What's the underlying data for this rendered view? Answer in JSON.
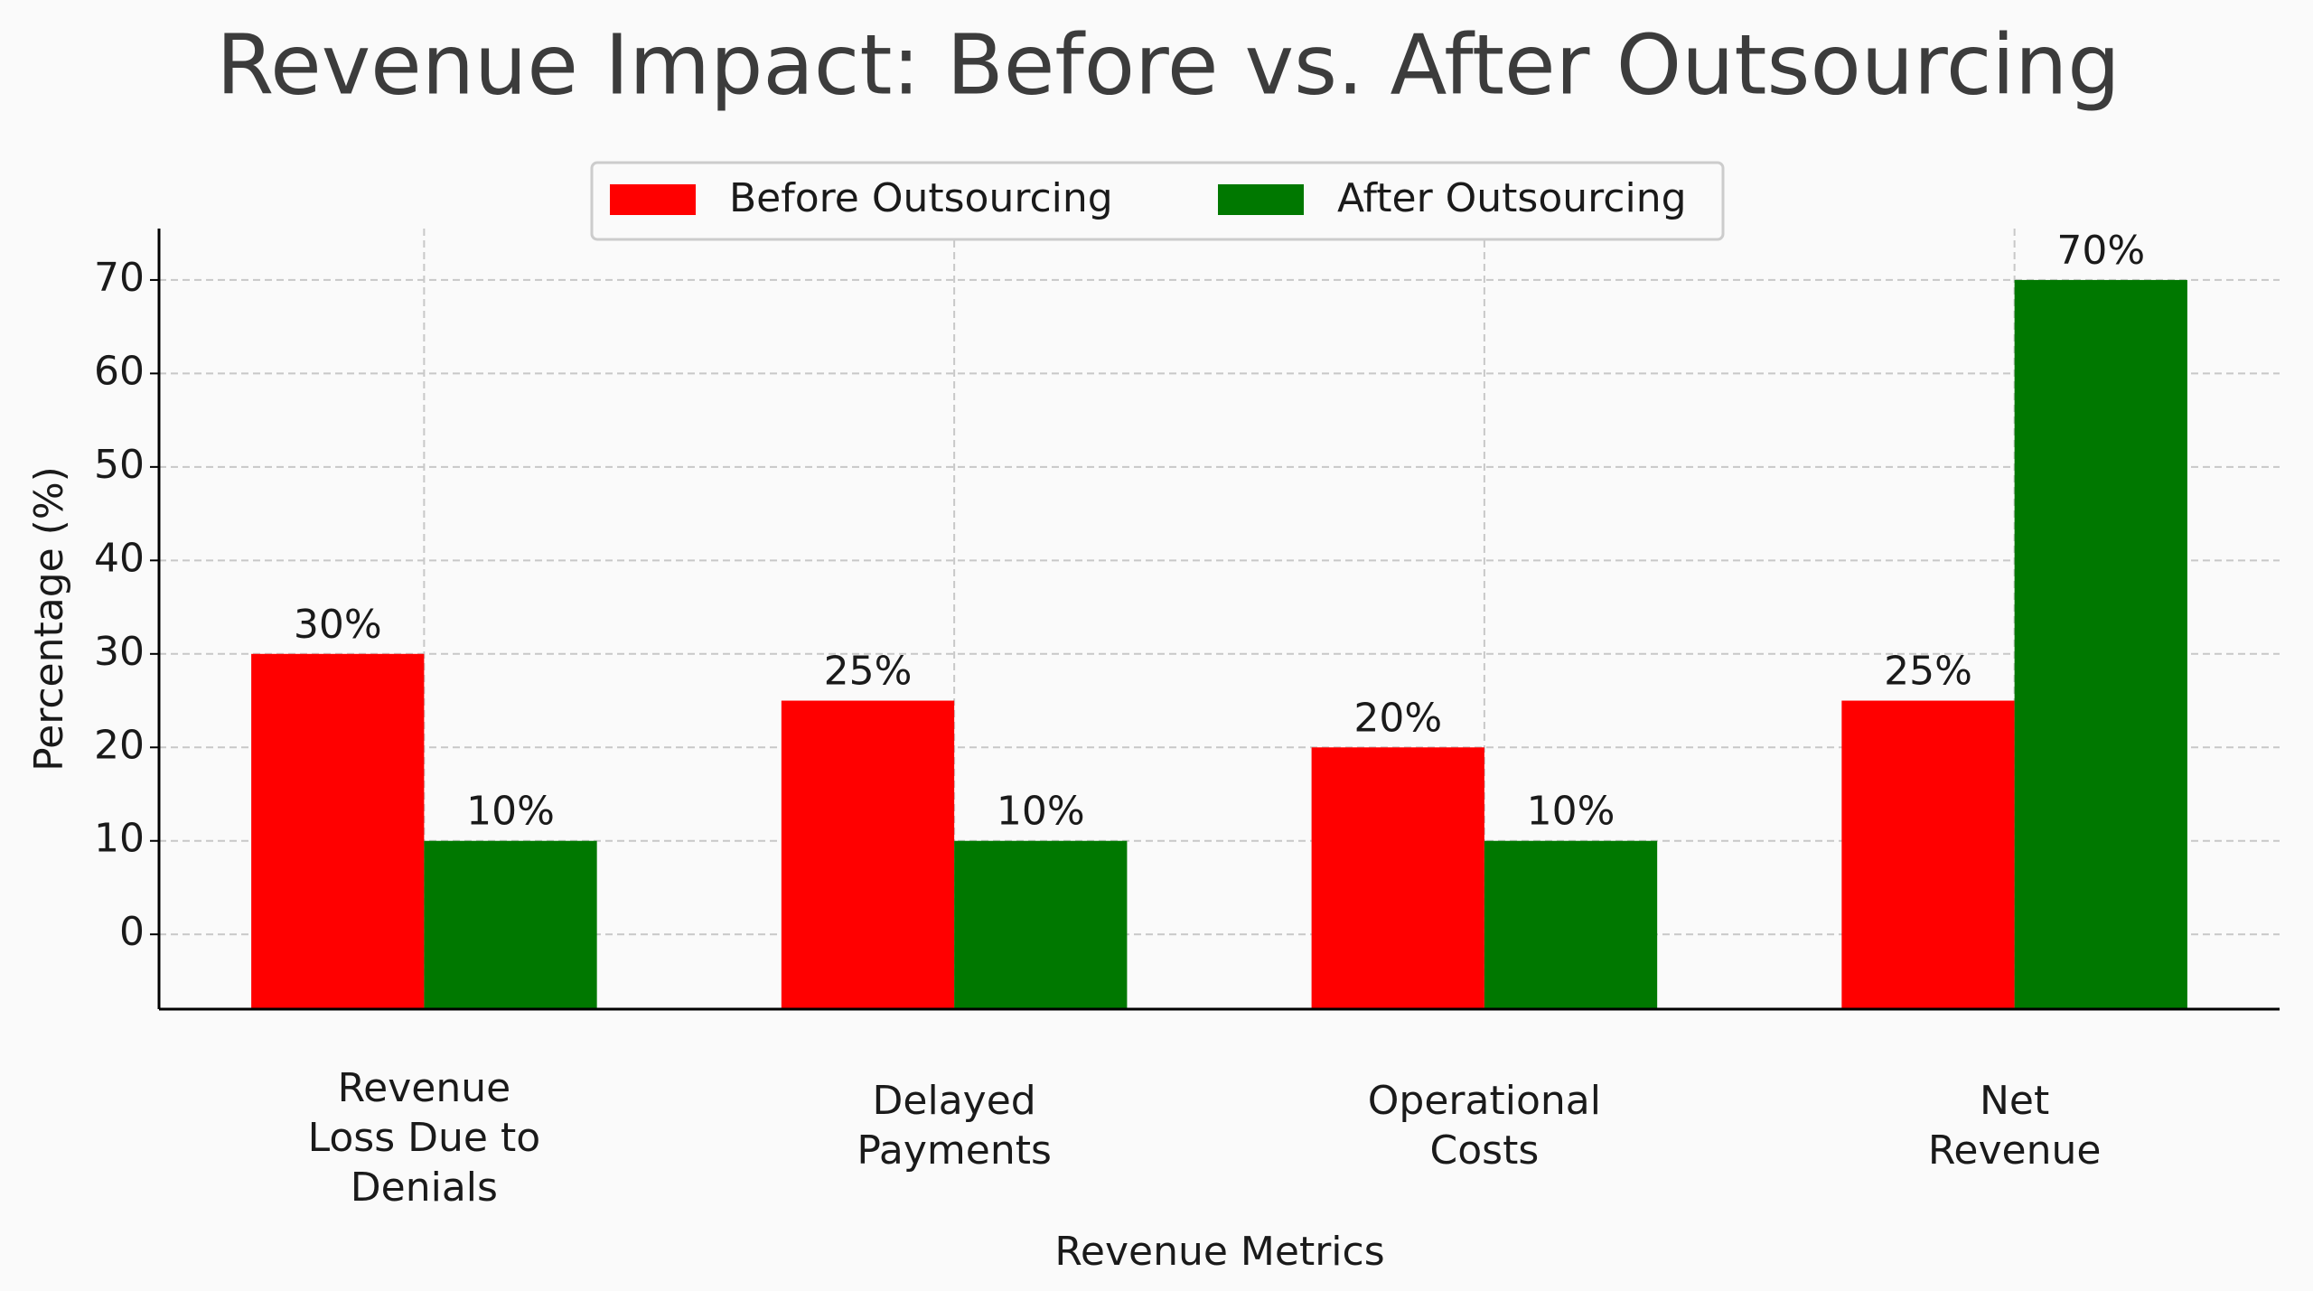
{
  "chart_data": {
    "type": "bar",
    "title": "Revenue Impact: Before vs. After Outsourcing",
    "x_label": "Revenue Metrics",
    "y_label": "Percentage (%)",
    "categories": [
      "Revenue\nLoss Due to\nDenials",
      "Delayed\nPayments",
      "Operational\nCosts",
      "Net\nRevenue"
    ],
    "series": [
      {
        "name": "Before Outsourcing",
        "color": "#ff0000",
        "values": [
          30,
          25,
          20,
          25
        ],
        "value_labels": [
          "30%",
          "25%",
          "20%",
          "25%"
        ]
      },
      {
        "name": "After Outsourcing",
        "color": "#007800",
        "values": [
          10,
          10,
          10,
          70
        ],
        "value_labels": [
          "10%",
          "10%",
          "10%",
          "70%"
        ]
      }
    ],
    "ylim": [
      -8,
      75.5
    ],
    "yticks": [
      0,
      10,
      20,
      30,
      40,
      50,
      60,
      70
    ],
    "grid": true,
    "legend": "top"
  }
}
